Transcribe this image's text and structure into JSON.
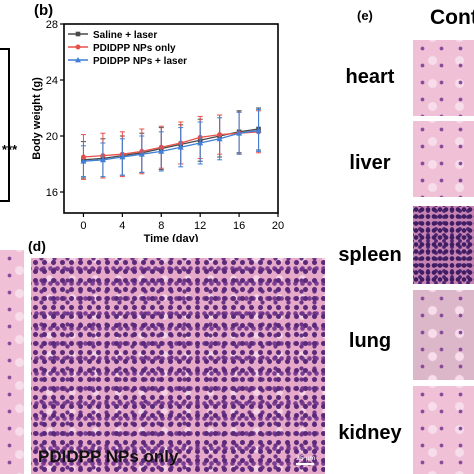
{
  "panels": {
    "b_label": "(b)",
    "d_label": "(d)",
    "e_label": "(e)",
    "e_header": "Cont",
    "left_partial_text": "***",
    "d_overlay": "PDIDPP NPs only",
    "scale_text": "25 μm"
  },
  "organs": [
    "heart",
    "liver",
    "spleen",
    "lung",
    "kidney"
  ],
  "chart_data": {
    "type": "line",
    "title": "",
    "xlabel": "Time (day)",
    "ylabel": "Body weight (g)",
    "xlim": [
      -2,
      20
    ],
    "ylim": [
      14.5,
      28
    ],
    "xticks": [
      0,
      4,
      8,
      12,
      16,
      20
    ],
    "yticks": [
      16,
      20,
      24,
      28
    ],
    "x": [
      0,
      2,
      4,
      6,
      8,
      10,
      12,
      14,
      16,
      18
    ],
    "legend_position": "top-left",
    "series": [
      {
        "name": "Saline + laser",
        "color": "#4a4a4a",
        "marker": "square",
        "values": [
          18.3,
          18.4,
          18.6,
          18.8,
          19.1,
          19.4,
          19.7,
          20.0,
          20.3,
          20.5
        ],
        "errors": [
          1.3,
          1.4,
          1.4,
          1.4,
          1.5,
          1.4,
          1.5,
          1.5,
          1.5,
          1.5
        ]
      },
      {
        "name": "PDIDPP NPs only",
        "color": "#e8504a",
        "marker": "circle",
        "values": [
          18.5,
          18.6,
          18.7,
          18.9,
          19.2,
          19.5,
          19.9,
          20.1,
          20.2,
          20.3
        ],
        "errors": [
          1.6,
          1.6,
          1.6,
          1.6,
          1.5,
          1.5,
          1.5,
          1.4,
          1.5,
          1.5
        ]
      },
      {
        "name": "PDIDPP NPs + laser",
        "color": "#3f7fd6",
        "marker": "triangle",
        "values": [
          18.2,
          18.3,
          18.5,
          18.7,
          18.9,
          19.2,
          19.5,
          19.8,
          20.2,
          20.4
        ],
        "errors": [
          1.1,
          1.2,
          1.3,
          1.3,
          1.4,
          1.4,
          1.5,
          1.5,
          1.5,
          1.5
        ]
      }
    ]
  }
}
